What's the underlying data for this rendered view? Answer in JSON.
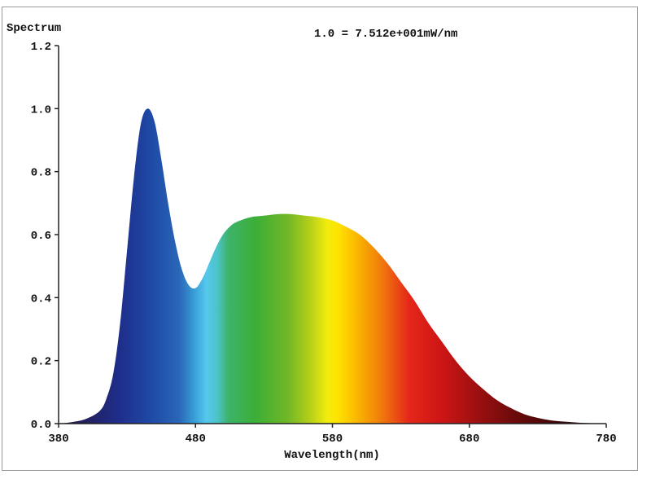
{
  "chart_data": {
    "type": "area",
    "title": "Spectrum",
    "annotation": "1.0 = 7.512e+001mW/nm",
    "xlabel": "Wavelength(nm)",
    "ylabel": "Spectrum",
    "xlim": [
      380,
      780
    ],
    "ylim": [
      0,
      1.2
    ],
    "x_ticks": [
      "380",
      "480",
      "580",
      "680",
      "780"
    ],
    "y_ticks": [
      "0.0",
      "0.2",
      "0.4",
      "0.6",
      "0.8",
      "1.0",
      "1.2"
    ],
    "grid": false,
    "fill": "wavelength-color gradient",
    "x": [
      380,
      390,
      400,
      410,
      415,
      420,
      425,
      430,
      435,
      440,
      445,
      450,
      455,
      460,
      465,
      470,
      475,
      480,
      485,
      490,
      495,
      500,
      505,
      510,
      520,
      530,
      540,
      550,
      560,
      570,
      580,
      590,
      600,
      610,
      620,
      630,
      640,
      650,
      660,
      670,
      680,
      690,
      700,
      710,
      720,
      730,
      740,
      750,
      760,
      770,
      780
    ],
    "y": [
      0.0,
      0.005,
      0.015,
      0.04,
      0.08,
      0.16,
      0.32,
      0.55,
      0.78,
      0.95,
      1.0,
      0.96,
      0.84,
      0.7,
      0.58,
      0.49,
      0.44,
      0.43,
      0.46,
      0.51,
      0.56,
      0.6,
      0.625,
      0.64,
      0.655,
      0.66,
      0.665,
      0.665,
      0.66,
      0.655,
      0.645,
      0.625,
      0.6,
      0.56,
      0.51,
      0.45,
      0.39,
      0.32,
      0.26,
      0.2,
      0.15,
      0.11,
      0.075,
      0.05,
      0.03,
      0.018,
      0.01,
      0.006,
      0.003,
      0.001,
      0.0
    ]
  }
}
